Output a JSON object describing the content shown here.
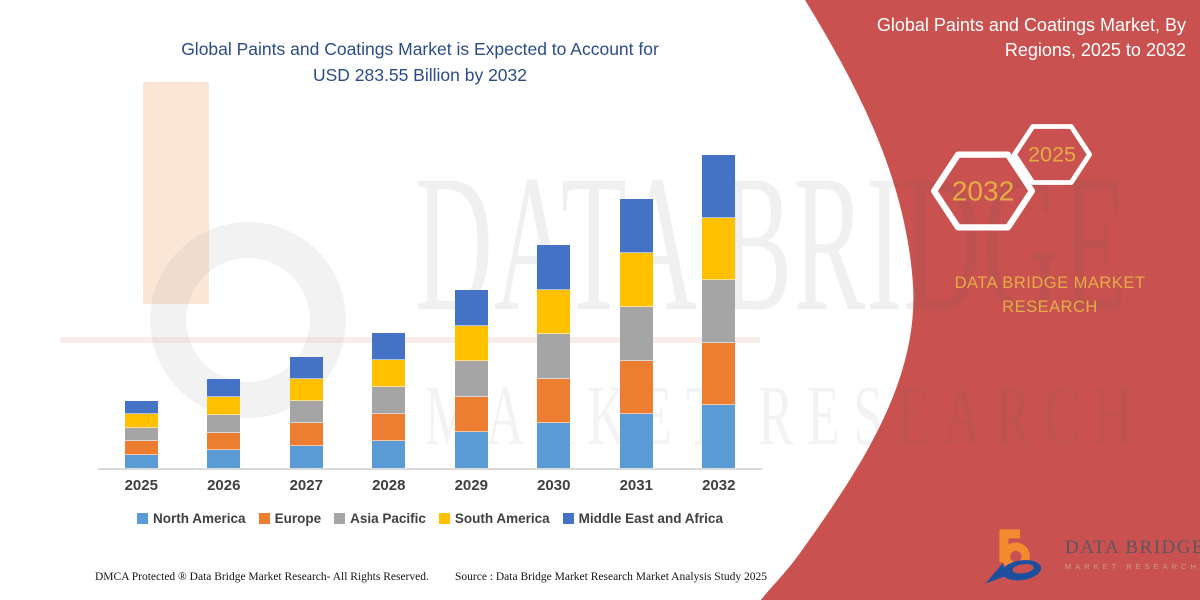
{
  "colors": {
    "banner_red": "#C95250",
    "gold": "#E5AC45",
    "title_blue": "#2B4C87",
    "axis_line": "#D9D9D9",
    "tick_text": "#3F3F3F"
  },
  "header": {
    "title_line1": "Global Paints and Coatings Market is Expected to Account for",
    "title_line2": "USD 283.55 Billion by 2032"
  },
  "banner": {
    "title_line1": "Global Paints and Coatings Market, By",
    "title_line2": "Regions, 2025 to 2032",
    "hexagons": [
      {
        "label": "2032"
      },
      {
        "label": "2025"
      }
    ],
    "brand_line1": "DATA BRIDGE MARKET",
    "brand_line2": "RESEARCH"
  },
  "watermark": {
    "line1": "DATA BRIDGE",
    "line2": "MARKET RESEARCH"
  },
  "chart_data": {
    "type": "bar",
    "stacked": true,
    "title": "Global Paints and Coatings Market is Expected to Account for USD 283.55 Billion by 2032",
    "units": "USD Billion",
    "categories": [
      "2025",
      "2026",
      "2027",
      "2028",
      "2029",
      "2030",
      "2031",
      "2032"
    ],
    "series": [
      {
        "name": "North America",
        "color": "#5B9BD5",
        "values": [
          12.2,
          16.1,
          20.2,
          24.4,
          32.2,
          40.4,
          48.7,
          56.7
        ]
      },
      {
        "name": "Europe",
        "color": "#ED7D31",
        "values": [
          12.2,
          16.1,
          20.2,
          24.4,
          32.2,
          40.4,
          48.7,
          56.7
        ]
      },
      {
        "name": "Asia Pacific",
        "color": "#A5A5A5",
        "values": [
          12.2,
          16.1,
          20.2,
          24.4,
          32.2,
          40.4,
          48.7,
          56.7
        ]
      },
      {
        "name": "South America",
        "color": "#FFC000",
        "values": [
          12.2,
          16.1,
          20.2,
          24.4,
          32.2,
          40.4,
          48.7,
          56.7
        ]
      },
      {
        "name": "Middle East and Africa",
        "color": "#4472C4",
        "values": [
          12.2,
          16.1,
          20.2,
          24.4,
          32.2,
          40.4,
          48.7,
          56.7
        ]
      }
    ],
    "totals_estimated": [
      61,
      80.5,
      101,
      122,
      161,
      202,
      243.5,
      283.55
    ],
    "ylim": [
      0,
      290
    ],
    "y_axis_visible": false,
    "grid": false,
    "legend_position": "bottom"
  },
  "footer": {
    "dmca": "DMCA Protected ® Data Bridge Market Research- All Rights Reserved.",
    "source": "Source : Data Bridge Market Research Market Analysis Study 2025"
  },
  "logo": {
    "name": "DATA BRIDGE",
    "sub": "MARKET RESEARCH"
  }
}
